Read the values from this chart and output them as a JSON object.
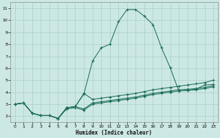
{
  "xlabel": "Humidex (Indice chaleur)",
  "bg_color": "#cce8e4",
  "grid_color": "#aaccc8",
  "line_color": "#1a6b5a",
  "xlim": [
    -0.5,
    23.5
  ],
  "ylim": [
    1.5,
    11.5
  ],
  "xticks": [
    0,
    1,
    2,
    3,
    4,
    5,
    6,
    7,
    8,
    9,
    10,
    11,
    12,
    13,
    14,
    15,
    16,
    17,
    18,
    19,
    20,
    21,
    22,
    23
  ],
  "yticks": [
    2,
    3,
    4,
    5,
    6,
    7,
    8,
    9,
    10,
    11
  ],
  "line1_x": [
    0,
    1,
    2,
    3,
    4,
    5,
    6,
    7,
    8,
    9,
    10,
    11,
    12,
    13,
    14,
    15,
    16,
    17,
    18,
    19,
    20,
    21,
    22,
    23
  ],
  "line1_y": [
    3.0,
    3.1,
    2.25,
    2.05,
    2.05,
    1.8,
    2.7,
    2.8,
    3.85,
    6.6,
    7.7,
    8.0,
    9.9,
    10.9,
    10.9,
    10.35,
    9.65,
    7.7,
    6.05,
    4.1,
    4.15,
    4.25,
    4.6,
    4.65
  ],
  "line2_x": [
    0,
    1,
    2,
    3,
    4,
    5,
    6,
    7,
    8,
    9,
    10,
    11,
    12,
    13,
    14,
    15,
    16,
    17,
    18,
    19,
    20,
    21,
    22,
    23
  ],
  "line2_y": [
    3.0,
    3.1,
    2.25,
    2.05,
    2.05,
    1.8,
    2.7,
    2.8,
    3.9,
    3.4,
    3.5,
    3.6,
    3.7,
    3.8,
    3.9,
    4.05,
    4.2,
    4.3,
    4.4,
    4.5,
    4.6,
    4.7,
    4.8,
    5.0
  ],
  "line3_x": [
    0,
    1,
    2,
    3,
    4,
    5,
    6,
    7,
    8,
    9,
    10,
    11,
    12,
    13,
    14,
    15,
    16,
    17,
    18,
    19,
    20,
    21,
    22,
    23
  ],
  "line3_y": [
    3.0,
    3.1,
    2.25,
    2.05,
    2.05,
    1.8,
    2.7,
    2.8,
    2.6,
    3.1,
    3.2,
    3.3,
    3.4,
    3.5,
    3.6,
    3.75,
    3.9,
    4.0,
    4.1,
    4.2,
    4.25,
    4.3,
    4.4,
    4.55
  ],
  "line4_x": [
    0,
    1,
    2,
    3,
    4,
    5,
    6,
    7,
    8,
    9,
    10,
    11,
    12,
    13,
    14,
    15,
    16,
    17,
    18,
    19,
    20,
    21,
    22,
    23
  ],
  "line4_y": [
    3.0,
    3.1,
    2.25,
    2.05,
    2.05,
    1.8,
    2.6,
    2.7,
    2.5,
    3.0,
    3.1,
    3.2,
    3.3,
    3.4,
    3.5,
    3.65,
    3.8,
    3.9,
    4.0,
    4.1,
    4.15,
    4.2,
    4.3,
    4.45
  ]
}
